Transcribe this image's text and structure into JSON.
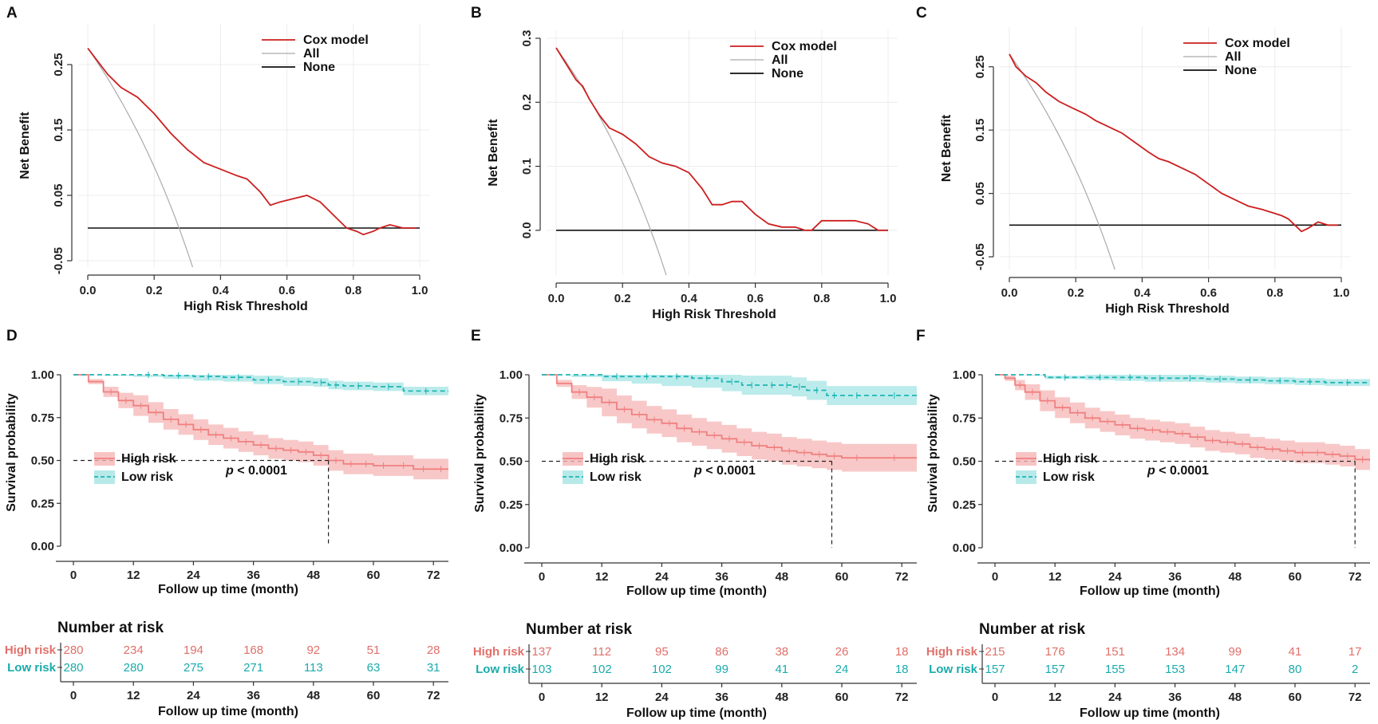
{
  "chart_data": [
    {
      "panel": "A",
      "type": "line",
      "title": "",
      "xlabel": "High Risk Threshold",
      "ylabel": "Net Benefit",
      "xlim": [
        0,
        1
      ],
      "ylim": [
        -0.05,
        0.3
      ],
      "xticks": [
        0,
        0.2,
        0.4,
        0.6,
        0.8,
        1.0
      ],
      "xtick_labels": [
        "0.0",
        "0.2",
        "0.4",
        "0.6",
        "0.8",
        "1.0"
      ],
      "yticks": [
        -0.05,
        0.05,
        0.15,
        0.25
      ],
      "ytick_labels": [
        "-0.05",
        "0.05",
        "0.15",
        "0.25"
      ],
      "legend": [
        "Cox model",
        "All",
        "None"
      ],
      "prevalence": 0.275,
      "series": [
        {
          "name": "Cox model",
          "color": "#cc1f1f",
          "x": [
            0,
            0.03,
            0.06,
            0.1,
            0.15,
            0.2,
            0.25,
            0.3,
            0.35,
            0.4,
            0.45,
            0.48,
            0.52,
            0.55,
            0.58,
            0.62,
            0.66,
            0.7,
            0.74,
            0.78,
            0.81,
            0.83,
            0.86,
            0.88,
            0.91,
            0.95,
            0.99
          ],
          "y": [
            0.275,
            0.255,
            0.235,
            0.215,
            0.2,
            0.175,
            0.145,
            0.12,
            0.1,
            0.09,
            0.08,
            0.075,
            0.055,
            0.035,
            0.04,
            0.045,
            0.05,
            0.04,
            0.02,
            0.0,
            -0.005,
            -0.01,
            -0.005,
            0.0,
            0.005,
            0.0,
            0.0
          ]
        },
        {
          "name": "All",
          "color": "#aaaaaa",
          "x": [],
          "y": []
        },
        {
          "name": "None",
          "color": "#111111",
          "x": [
            0,
            1
          ],
          "y": [
            0,
            0
          ]
        }
      ]
    },
    {
      "panel": "B",
      "type": "line",
      "title": "",
      "xlabel": "High Risk Threshold",
      "ylabel": "Net Benefit",
      "xlim": [
        0,
        1
      ],
      "ylim": [
        -0.06,
        0.3
      ],
      "xticks": [
        0,
        0.2,
        0.4,
        0.6,
        0.8,
        1.0
      ],
      "xtick_labels": [
        "0.0",
        "0.2",
        "0.4",
        "0.6",
        "0.8",
        "1.0"
      ],
      "yticks": [
        0,
        0.1,
        0.2,
        0.3
      ],
      "ytick_labels": [
        "0.0",
        "0.1",
        "0.2",
        "0.3"
      ],
      "legend": [
        "Cox model",
        "All",
        "None"
      ],
      "prevalence": 0.285,
      "series": [
        {
          "name": "Cox model",
          "color": "#cc1f1f",
          "x": [
            0,
            0.03,
            0.06,
            0.08,
            0.1,
            0.13,
            0.16,
            0.2,
            0.24,
            0.28,
            0.32,
            0.36,
            0.4,
            0.44,
            0.47,
            0.5,
            0.53,
            0.56,
            0.6,
            0.64,
            0.68,
            0.72,
            0.75,
            0.77,
            0.8,
            0.85,
            0.9,
            0.94,
            0.97,
            1.0
          ],
          "y": [
            0.285,
            0.26,
            0.235,
            0.225,
            0.205,
            0.18,
            0.16,
            0.15,
            0.135,
            0.115,
            0.105,
            0.1,
            0.09,
            0.065,
            0.04,
            0.04,
            0.045,
            0.045,
            0.025,
            0.01,
            0.005,
            0.005,
            0.0,
            0.0,
            0.015,
            0.015,
            0.015,
            0.01,
            0.0,
            0.0
          ]
        },
        {
          "name": "All",
          "color": "#aaaaaa",
          "x": [],
          "y": []
        },
        {
          "name": "None",
          "color": "#111111",
          "x": [
            0,
            1
          ],
          "y": [
            0,
            0
          ]
        }
      ]
    },
    {
      "panel": "C",
      "type": "line",
      "title": "",
      "xlabel": "High Risk Threshold",
      "ylabel": "Net Benefit",
      "xlim": [
        0,
        1
      ],
      "ylim": [
        -0.06,
        0.3
      ],
      "xticks": [
        0,
        0.2,
        0.4,
        0.6,
        0.8,
        1.0
      ],
      "xtick_labels": [
        "0.0",
        "0.2",
        "0.4",
        "0.6",
        "0.8",
        "1.0"
      ],
      "yticks": [
        -0.05,
        0.05,
        0.15,
        0.25
      ],
      "ytick_labels": [
        "-0.05",
        "0.05",
        "0.15",
        "0.25"
      ],
      "legend": [
        "Cox model",
        "All",
        "None"
      ],
      "prevalence": 0.27,
      "series": [
        {
          "name": "Cox model",
          "color": "#cc1f1f",
          "x": [
            0,
            0.02,
            0.05,
            0.08,
            0.11,
            0.15,
            0.19,
            0.23,
            0.26,
            0.3,
            0.34,
            0.38,
            0.42,
            0.45,
            0.48,
            0.52,
            0.56,
            0.6,
            0.64,
            0.68,
            0.72,
            0.76,
            0.79,
            0.82,
            0.84,
            0.86,
            0.88,
            0.9,
            0.93,
            0.96,
            0.99
          ],
          "y": [
            0.27,
            0.25,
            0.235,
            0.225,
            0.21,
            0.195,
            0.185,
            0.175,
            0.165,
            0.155,
            0.145,
            0.13,
            0.115,
            0.105,
            0.1,
            0.09,
            0.08,
            0.065,
            0.05,
            0.04,
            0.03,
            0.025,
            0.02,
            0.015,
            0.01,
            0.0,
            -0.01,
            -0.005,
            0.005,
            0.0,
            0.0
          ]
        },
        {
          "name": "All",
          "color": "#aaaaaa",
          "x": [],
          "y": []
        },
        {
          "name": "None",
          "color": "#111111",
          "x": [
            0,
            1
          ],
          "y": [
            0,
            0
          ]
        }
      ]
    },
    {
      "panel": "D",
      "type": "line",
      "subtype": "kaplan-meier",
      "xlabel": "Follow up time (month)",
      "ylabel": "Survival probability",
      "xlim": [
        0,
        75
      ],
      "ylim": [
        0,
        1.05
      ],
      "xticks": [
        0,
        12,
        24,
        36,
        48,
        60,
        72
      ],
      "xtick_labels": [
        "0",
        "12",
        "24",
        "36",
        "48",
        "60",
        "72"
      ],
      "yticks": [
        0,
        0.25,
        0.5,
        0.75,
        1.0
      ],
      "ytick_labels": [
        "0.00",
        "0.25",
        "0.50",
        "0.75",
        "1.00"
      ],
      "legend": [
        "High risk",
        "Low risk"
      ],
      "pvalue": "p < 0.0001",
      "median_survival": 51,
      "series": [
        {
          "name": "High risk",
          "color": "#f08080",
          "band_color": "#f5b5b5",
          "x": [
            0,
            3,
            6,
            9,
            12,
            15,
            18,
            21,
            24,
            27,
            30,
            33,
            36,
            39,
            42,
            45,
            48,
            51,
            54,
            57,
            60,
            64,
            68,
            72,
            75
          ],
          "y": [
            1.0,
            0.96,
            0.9,
            0.85,
            0.82,
            0.78,
            0.74,
            0.71,
            0.68,
            0.65,
            0.63,
            0.61,
            0.59,
            0.57,
            0.56,
            0.55,
            0.53,
            0.5,
            0.48,
            0.48,
            0.47,
            0.47,
            0.45,
            0.45,
            0.45
          ],
          "band_width": 0.06
        },
        {
          "name": "Low risk",
          "color": "#1fb5b5",
          "band_color": "#a6e4e4",
          "x": [
            0,
            6,
            12,
            18,
            24,
            30,
            36,
            42,
            48,
            51,
            54,
            60,
            66,
            75
          ],
          "y": [
            1.0,
            1.0,
            1.0,
            0.995,
            0.99,
            0.985,
            0.97,
            0.96,
            0.955,
            0.94,
            0.935,
            0.93,
            0.905,
            0.9
          ],
          "band_width": 0.025
        }
      ],
      "risk_table": {
        "title": "Number at risk",
        "rows": [
          {
            "name": "High risk",
            "color": "#e0706a",
            "values": [
              "280",
              "234",
              "194",
              "168",
              "92",
              "51",
              "28"
            ]
          },
          {
            "name": "Low risk",
            "color": "#1aabab",
            "values": [
              "280",
              "280",
              "275",
              "271",
              "113",
              "63",
              "31"
            ]
          }
        ]
      }
    },
    {
      "panel": "E",
      "type": "line",
      "subtype": "kaplan-meier",
      "xlabel": "Follow up time (month)",
      "ylabel": "Survival probability",
      "xlim": [
        0,
        75
      ],
      "ylim": [
        0,
        1.05
      ],
      "xticks": [
        0,
        12,
        24,
        36,
        48,
        60,
        72
      ],
      "xtick_labels": [
        "0",
        "12",
        "24",
        "36",
        "48",
        "60",
        "72"
      ],
      "yticks": [
        0,
        0.25,
        0.5,
        0.75,
        1.0
      ],
      "ytick_labels": [
        "0.00",
        "0.25",
        "0.50",
        "0.75",
        "1.00"
      ],
      "legend": [
        "High risk",
        "Low risk"
      ],
      "pvalue": "p < 0.0001",
      "median_survival": 58,
      "series": [
        {
          "name": "High risk",
          "color": "#f08080",
          "band_color": "#f5b5b5",
          "x": [
            0,
            3,
            6,
            9,
            12,
            15,
            18,
            21,
            24,
            27,
            30,
            33,
            36,
            39,
            42,
            45,
            48,
            51,
            54,
            57,
            60,
            66,
            75
          ],
          "y": [
            1.0,
            0.95,
            0.9,
            0.87,
            0.84,
            0.8,
            0.77,
            0.74,
            0.72,
            0.69,
            0.67,
            0.65,
            0.63,
            0.61,
            0.59,
            0.58,
            0.56,
            0.55,
            0.54,
            0.53,
            0.52,
            0.52,
            0.52
          ],
          "band_width": 0.08
        },
        {
          "name": "Low risk",
          "color": "#1fb5b5",
          "band_color": "#a6e4e4",
          "x": [
            0,
            6,
            12,
            18,
            24,
            30,
            36,
            40,
            44,
            48,
            50,
            53,
            57,
            60,
            66,
            75
          ],
          "y": [
            1.0,
            1.0,
            0.99,
            0.99,
            0.99,
            0.98,
            0.96,
            0.94,
            0.94,
            0.94,
            0.93,
            0.91,
            0.88,
            0.88,
            0.88,
            0.88
          ],
          "band_width": 0.055
        }
      ],
      "risk_table": {
        "title": "Number at risk",
        "rows": [
          {
            "name": "High risk",
            "color": "#e0706a",
            "values": [
              "137",
              "112",
              "95",
              "86",
              "38",
              "26",
              "18"
            ]
          },
          {
            "name": "Low risk",
            "color": "#1aabab",
            "values": [
              "103",
              "102",
              "102",
              "99",
              "41",
              "24",
              "18"
            ]
          }
        ]
      }
    },
    {
      "panel": "F",
      "type": "line",
      "subtype": "kaplan-meier",
      "xlabel": "Follow up time (month)",
      "ylabel": "Survival probability",
      "xlim": [
        0,
        75
      ],
      "ylim": [
        0,
        1.05
      ],
      "xticks": [
        0,
        12,
        24,
        36,
        48,
        60,
        72
      ],
      "xtick_labels": [
        "0",
        "12",
        "24",
        "36",
        "48",
        "60",
        "72"
      ],
      "yticks": [
        0,
        0.25,
        0.5,
        0.75,
        1.0
      ],
      "ytick_labels": [
        "0.00",
        "0.25",
        "0.50",
        "0.75",
        "1.00"
      ],
      "legend": [
        "High risk",
        "Low risk"
      ],
      "pvalue": "p < 0.0001",
      "median_survival": 72,
      "series": [
        {
          "name": "High risk",
          "color": "#f08080",
          "band_color": "#f5b5b5",
          "x": [
            0,
            2,
            4,
            6,
            9,
            12,
            15,
            18,
            21,
            24,
            27,
            30,
            33,
            36,
            39,
            42,
            45,
            48,
            51,
            54,
            57,
            60,
            63,
            66,
            69,
            72,
            75
          ],
          "y": [
            1.0,
            0.98,
            0.94,
            0.9,
            0.85,
            0.81,
            0.78,
            0.75,
            0.73,
            0.71,
            0.69,
            0.68,
            0.67,
            0.66,
            0.64,
            0.62,
            0.61,
            0.6,
            0.58,
            0.57,
            0.56,
            0.55,
            0.55,
            0.54,
            0.53,
            0.51,
            0.5
          ],
          "band_width": 0.06
        },
        {
          "name": "Low risk",
          "color": "#1fb5b5",
          "band_color": "#a6e4e4",
          "x": [
            0,
            6,
            10,
            18,
            24,
            30,
            36,
            42,
            48,
            54,
            60,
            66,
            75
          ],
          "y": [
            1.0,
            1.0,
            0.985,
            0.985,
            0.985,
            0.98,
            0.98,
            0.975,
            0.97,
            0.965,
            0.96,
            0.955,
            0.955
          ],
          "band_width": 0.02
        }
      ],
      "risk_table": {
        "title": "Number at risk",
        "rows": [
          {
            "name": "High risk",
            "color": "#e0706a",
            "values": [
              "215",
              "176",
              "151",
              "134",
              "99",
              "41",
              "17"
            ]
          },
          {
            "name": "Low risk",
            "color": "#1aabab",
            "values": [
              "157",
              "157",
              "155",
              "153",
              "147",
              "80",
              "2"
            ]
          }
        ]
      }
    }
  ]
}
